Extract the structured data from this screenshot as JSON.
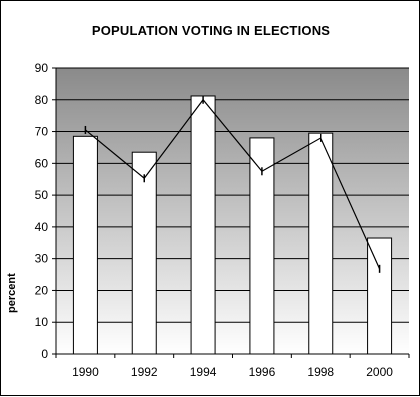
{
  "chart_data": {
    "type": "bar+line",
    "title": "POPULATION VOTING IN ELECTIONS",
    "ylabel": "percent",
    "xlabel": "",
    "categories": [
      "1990",
      "1992",
      "1994",
      "1996",
      "1998",
      "2000"
    ],
    "series": [
      {
        "type": "bar",
        "values": [
          68.5,
          63.5,
          81.2,
          68.0,
          69.5,
          36.5
        ]
      },
      {
        "type": "line",
        "values": [
          70.5,
          55.3,
          80.0,
          57.5,
          68.0,
          26.8
        ]
      }
    ],
    "ylim": [
      0,
      90
    ],
    "yticks": [
      0,
      10,
      20,
      30,
      40,
      50,
      60,
      70,
      80,
      90
    ],
    "grid": true,
    "legend": "none",
    "colors": {
      "bar_fill": "#ffffff",
      "bar_stroke": "#000000",
      "line": "#000000",
      "gridline": "#000000",
      "plot_gradient_top": "#8a8a8a",
      "plot_gradient_bottom": "#ffffff"
    }
  }
}
